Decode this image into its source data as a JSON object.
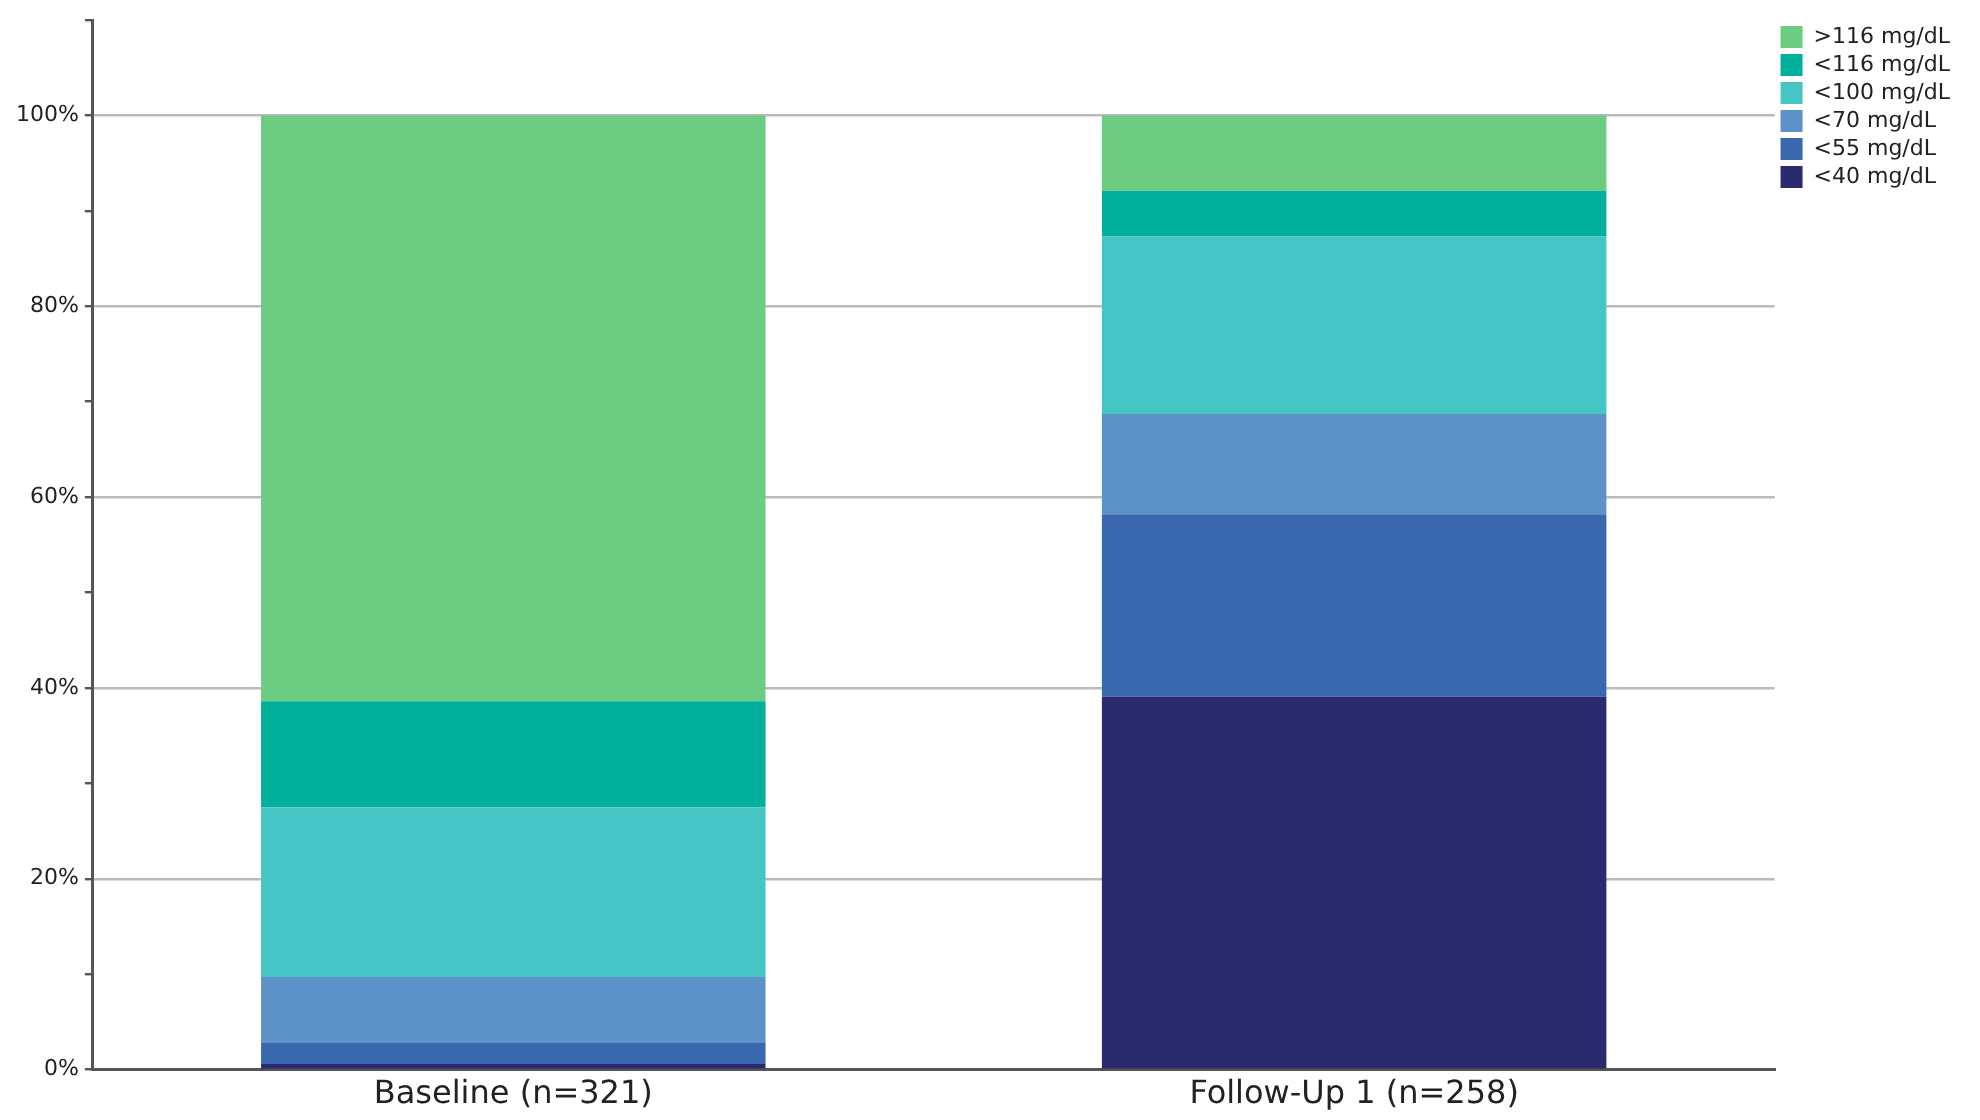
{
  "chart_data": {
    "type": "bar",
    "stacked": true,
    "categories": [
      "Baseline (n=321)",
      "Follow-Up 1 (n=258)"
    ],
    "series": [
      {
        "name": "<40 mg/dL",
        "color": "#2a2a6e",
        "values": [
          0.6,
          39.1
        ]
      },
      {
        "name": "<55 mg/dL",
        "color": "#3a68ae",
        "values": [
          2.2,
          19.1
        ]
      },
      {
        "name": "<70 mg/dL",
        "color": "#5c92c7",
        "values": [
          6.9,
          10.5
        ]
      },
      {
        "name": "<100 mg/dL",
        "color": "#46c5c4",
        "values": [
          17.8,
          18.6
        ]
      },
      {
        "name": "<116 mg/dL",
        "color": "#00b09a",
        "values": [
          11.1,
          4.8
        ]
      },
      {
        "name": ">116 mg/dL",
        "color": "#6ccd82",
        "values": [
          61.4,
          7.9
        ]
      }
    ],
    "ylim": [
      0,
      110
    ],
    "yticks": [
      {
        "value": 0,
        "label": "0%"
      },
      {
        "value": 10,
        "label": null
      },
      {
        "value": 20,
        "label": "20%"
      },
      {
        "value": 30,
        "label": null
      },
      {
        "value": 40,
        "label": "40%"
      },
      {
        "value": 50,
        "label": null
      },
      {
        "value": 60,
        "label": "60%"
      },
      {
        "value": 70,
        "label": null
      },
      {
        "value": 80,
        "label": "80%"
      },
      {
        "value": 90,
        "label": null
      },
      {
        "value": 100,
        "label": "100%"
      },
      {
        "value": 110,
        "label": null
      }
    ],
    "grid": "y",
    "legend": "top right"
  }
}
